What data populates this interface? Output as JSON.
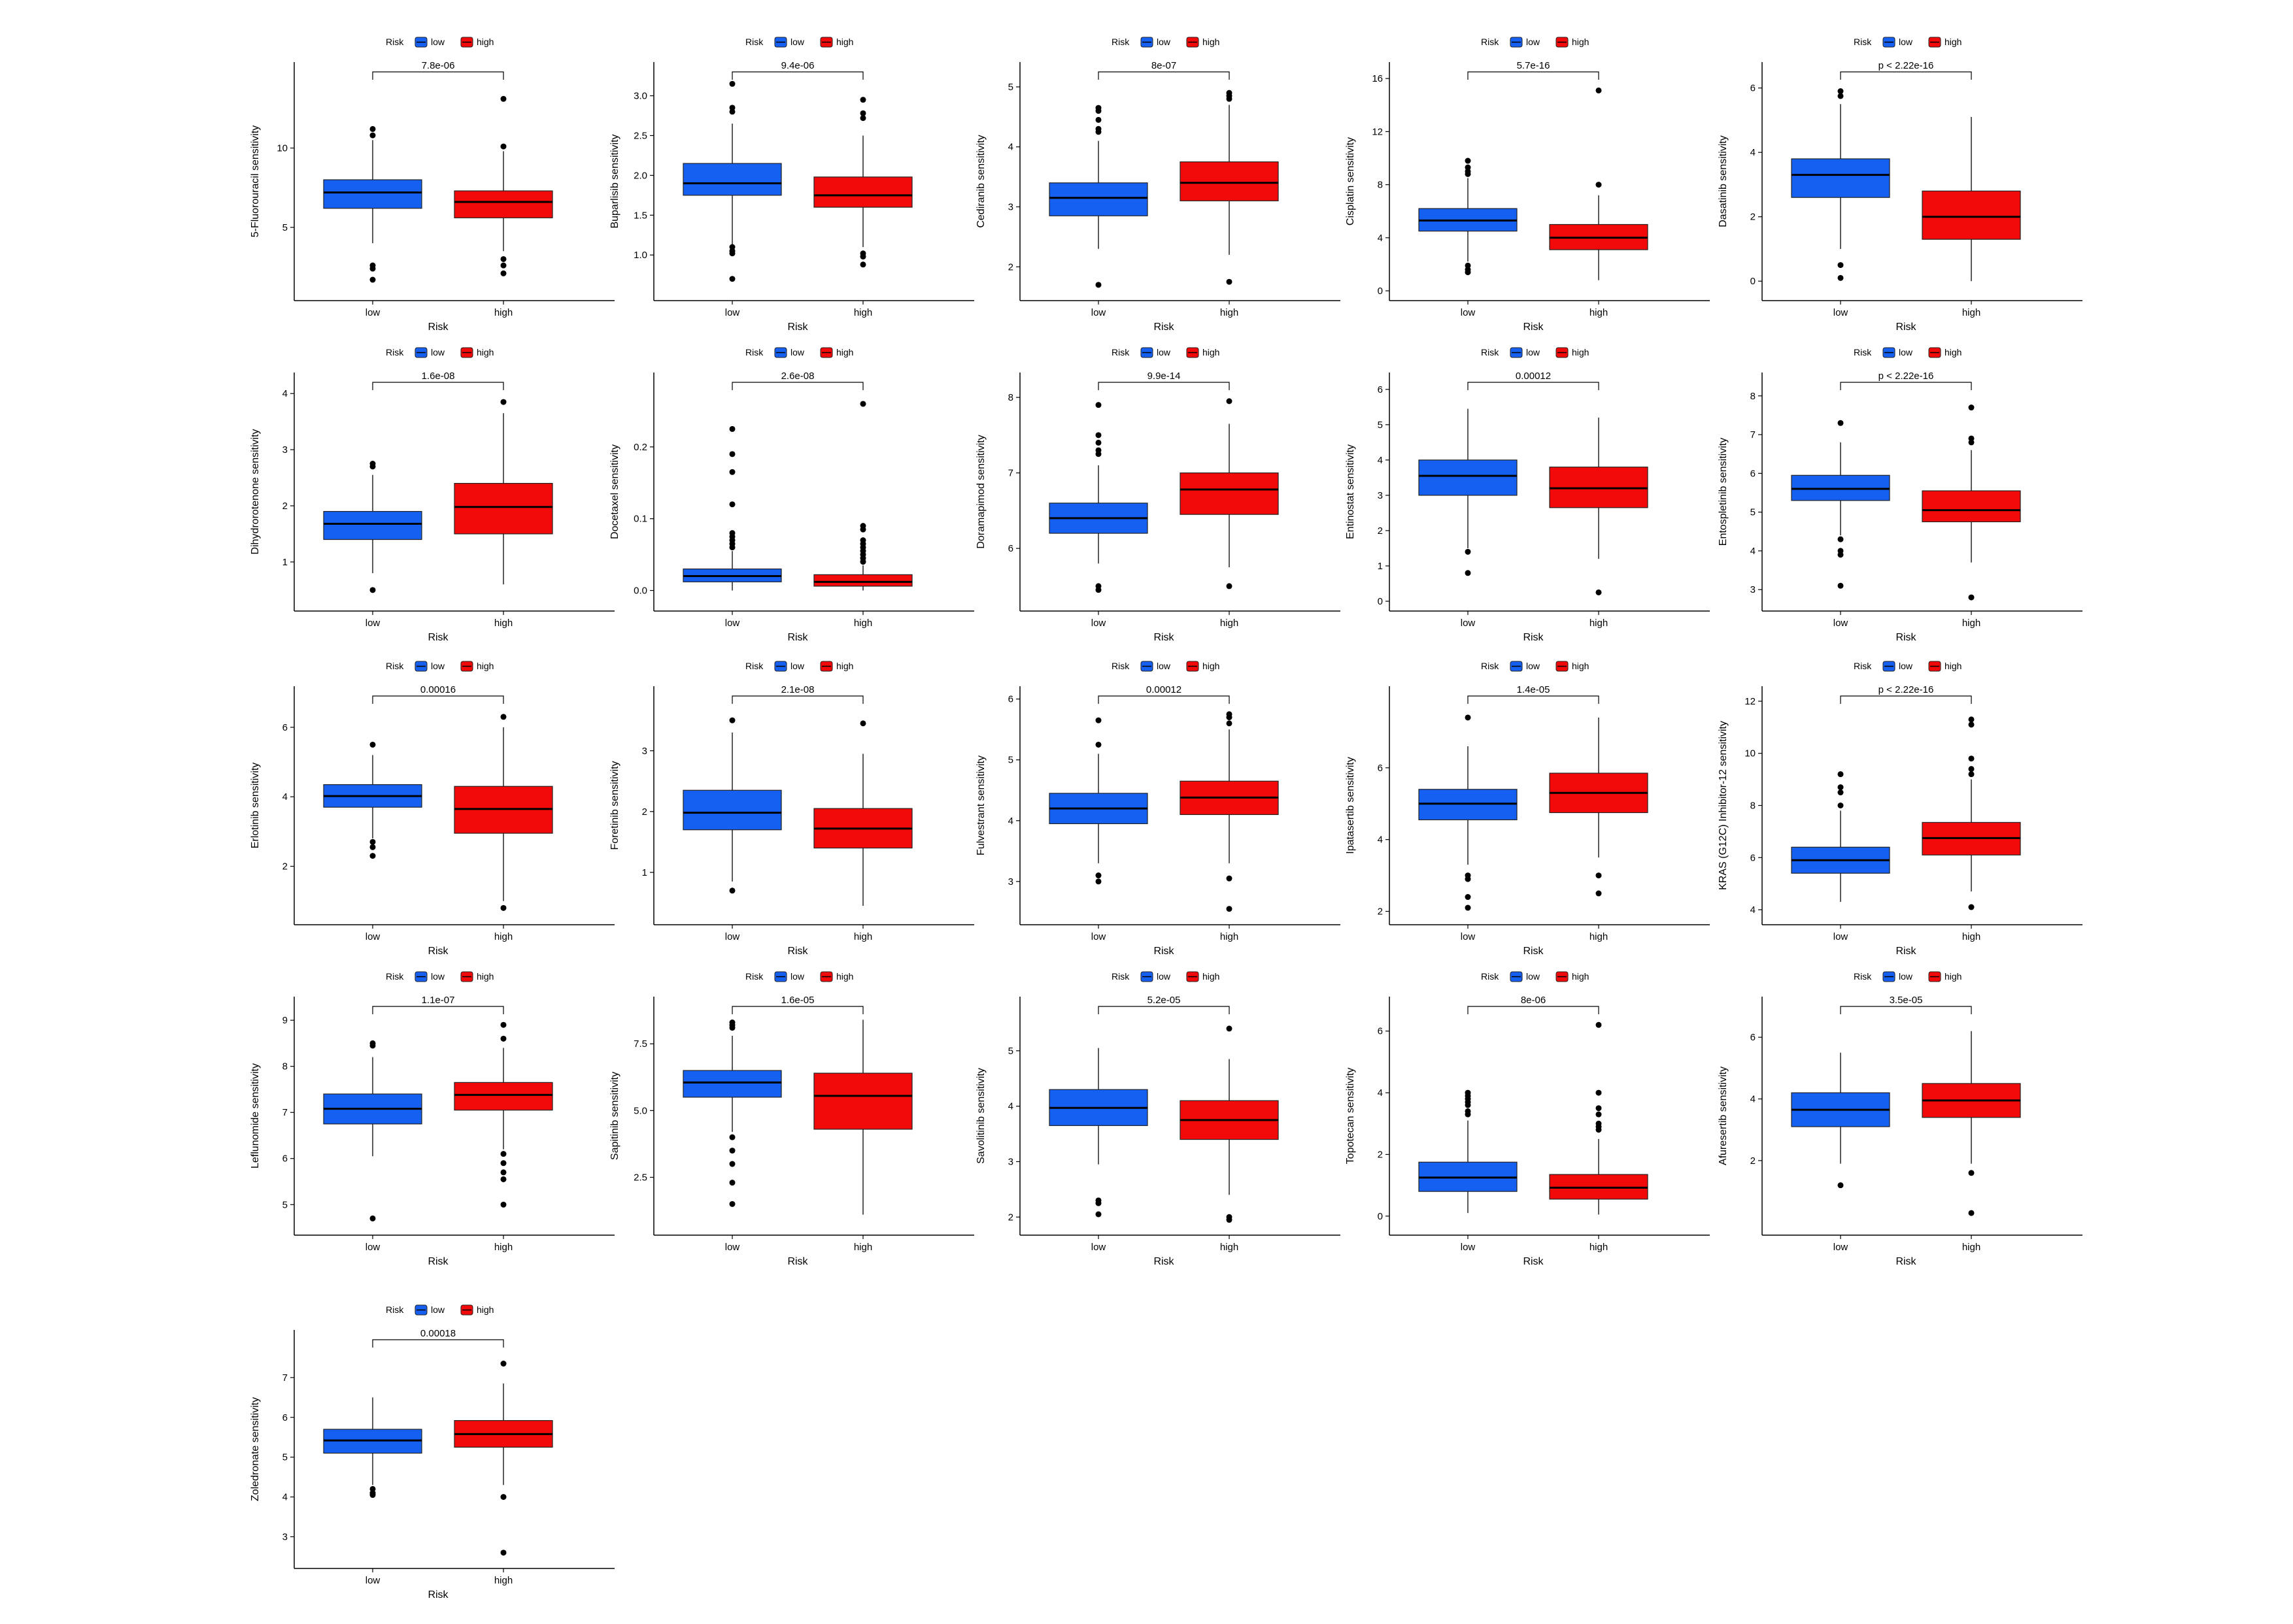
{
  "colors": {
    "low": "#1560f0",
    "high": "#f20a0a",
    "axis": "#000000",
    "points": "#000000"
  },
  "legend": {
    "title": "Risk",
    "items": [
      "low",
      "high"
    ]
  },
  "xlabel": "Risk",
  "categories": [
    "low",
    "high"
  ],
  "chart_data": [
    {
      "type": "box",
      "ylabel": "5-Fluorouracil sensitivity",
      "pvalue": "7.8e-06",
      "ylim": [
        1.0,
        14.8
      ],
      "yticks": [
        5,
        10
      ],
      "boxes": [
        {
          "group": "low",
          "q1": 6.2,
          "median": 7.2,
          "q3": 8.0,
          "whisker_low": 4.0,
          "whisker_high": 10.5,
          "outliers": [
            11.2,
            10.8,
            2.6,
            2.4,
            1.7
          ]
        },
        {
          "group": "high",
          "q1": 5.6,
          "median": 6.6,
          "q3": 7.3,
          "whisker_low": 3.5,
          "whisker_high": 9.8,
          "outliers": [
            13.1,
            10.1,
            3.0,
            2.6,
            2.1
          ]
        }
      ]
    },
    {
      "type": "box",
      "ylabel": "Buparlisib sensitivity",
      "pvalue": "9.4e-06",
      "ylim": [
        0.55,
        3.3
      ],
      "yticks": [
        1.0,
        1.5,
        2.0,
        2.5,
        3.0
      ],
      "boxes": [
        {
          "group": "low",
          "q1": 1.75,
          "median": 1.9,
          "q3": 2.15,
          "whisker_low": 1.12,
          "whisker_high": 2.65,
          "outliers": [
            3.15,
            2.85,
            2.8,
            1.1,
            1.05,
            1.02,
            0.7
          ]
        },
        {
          "group": "high",
          "q1": 1.6,
          "median": 1.75,
          "q3": 1.98,
          "whisker_low": 1.1,
          "whisker_high": 2.5,
          "outliers": [
            2.95,
            2.78,
            2.72,
            1.02,
            0.98,
            0.88
          ]
        }
      ]
    },
    {
      "type": "box",
      "ylabel": "Cediranib sensitivity",
      "pvalue": "8e-07",
      "ylim": [
        1.6,
        5.25
      ],
      "yticks": [
        2,
        3,
        4,
        5
      ],
      "boxes": [
        {
          "group": "low",
          "q1": 2.85,
          "median": 3.15,
          "q3": 3.4,
          "whisker_low": 2.3,
          "whisker_high": 4.1,
          "outliers": [
            4.65,
            4.6,
            4.45,
            4.3,
            4.25,
            1.7
          ]
        },
        {
          "group": "high",
          "q1": 3.1,
          "median": 3.4,
          "q3": 3.75,
          "whisker_low": 2.2,
          "whisker_high": 4.7,
          "outliers": [
            4.9,
            4.85,
            4.8,
            1.75
          ]
        }
      ]
    },
    {
      "type": "box",
      "ylabel": "Cisplatin sensitivity",
      "pvalue": "5.7e-16",
      "ylim": [
        0,
        16.5
      ],
      "yticks": [
        0,
        4,
        8,
        12,
        16
      ],
      "boxes": [
        {
          "group": "low",
          "q1": 4.5,
          "median": 5.3,
          "q3": 6.2,
          "whisker_low": 2.2,
          "whisker_high": 8.5,
          "outliers": [
            9.8,
            9.3,
            9.0,
            8.8,
            1.9,
            1.6,
            1.4
          ]
        },
        {
          "group": "high",
          "q1": 3.1,
          "median": 4.0,
          "q3": 5.0,
          "whisker_low": 0.8,
          "whisker_high": 7.2,
          "outliers": [
            15.1,
            8.0
          ]
        }
      ]
    },
    {
      "type": "box",
      "ylabel": "Dasatinib sensitivity",
      "pvalue": "p < 2.22e-16",
      "ylim": [
        -0.3,
        6.5
      ],
      "yticks": [
        0,
        2,
        4,
        6
      ],
      "boxes": [
        {
          "group": "low",
          "q1": 2.6,
          "median": 3.3,
          "q3": 3.8,
          "whisker_low": 1.0,
          "whisker_high": 5.5,
          "outliers": [
            5.9,
            5.75,
            0.5,
            0.1
          ]
        },
        {
          "group": "high",
          "q1": 1.3,
          "median": 2.0,
          "q3": 2.8,
          "whisker_low": 0.0,
          "whisker_high": 5.1,
          "outliers": []
        }
      ]
    },
    {
      "type": "box",
      "ylabel": "Dihydrorotenone sensitivity",
      "pvalue": "1.6e-08",
      "ylim": [
        0.3,
        4.2
      ],
      "yticks": [
        1,
        2,
        3,
        4
      ],
      "boxes": [
        {
          "group": "low",
          "q1": 1.4,
          "median": 1.68,
          "q3": 1.9,
          "whisker_low": 0.8,
          "whisker_high": 2.55,
          "outliers": [
            2.75,
            2.7,
            0.5
          ]
        },
        {
          "group": "high",
          "q1": 1.5,
          "median": 1.98,
          "q3": 2.4,
          "whisker_low": 0.6,
          "whisker_high": 3.65,
          "outliers": [
            3.85
          ]
        }
      ]
    },
    {
      "type": "box",
      "ylabel": "Docetaxel sensitivity",
      "pvalue": "2.6e-08",
      "ylim": [
        -0.015,
        0.29
      ],
      "yticks": [
        0.0,
        0.1,
        0.2
      ],
      "boxes": [
        {
          "group": "low",
          "q1": 0.012,
          "median": 0.02,
          "q3": 0.03,
          "whisker_low": 0.0,
          "whisker_high": 0.055,
          "outliers": [
            0.225,
            0.19,
            0.165,
            0.12,
            0.08,
            0.075,
            0.07,
            0.065,
            0.06
          ]
        },
        {
          "group": "high",
          "q1": 0.006,
          "median": 0.012,
          "q3": 0.022,
          "whisker_low": 0.0,
          "whisker_high": 0.035,
          "outliers": [
            0.26,
            0.09,
            0.085,
            0.07,
            0.065,
            0.06,
            0.055,
            0.05,
            0.045,
            0.04
          ]
        }
      ]
    },
    {
      "type": "box",
      "ylabel": "Doramapimod sensitivity",
      "pvalue": "9.9e-14",
      "ylim": [
        5.3,
        8.2
      ],
      "yticks": [
        6,
        7,
        8
      ],
      "boxes": [
        {
          "group": "low",
          "q1": 6.2,
          "median": 6.4,
          "q3": 6.6,
          "whisker_low": 5.8,
          "whisker_high": 7.1,
          "outliers": [
            7.9,
            7.5,
            7.4,
            7.3,
            7.25,
            5.5,
            5.45
          ]
        },
        {
          "group": "high",
          "q1": 6.45,
          "median": 6.78,
          "q3": 7.0,
          "whisker_low": 5.75,
          "whisker_high": 7.65,
          "outliers": [
            7.95,
            5.5
          ]
        }
      ]
    },
    {
      "type": "box",
      "ylabel": "Entinostat sensitivity",
      "pvalue": "0.00012",
      "ylim": [
        0,
        6.2
      ],
      "yticks": [
        0,
        1,
        2,
        3,
        4,
        5,
        6
      ],
      "boxes": [
        {
          "group": "low",
          "q1": 3.0,
          "median": 3.55,
          "q3": 4.0,
          "whisker_low": 1.5,
          "whisker_high": 5.45,
          "outliers": [
            1.4,
            0.8
          ]
        },
        {
          "group": "high",
          "q1": 2.65,
          "median": 3.2,
          "q3": 3.8,
          "whisker_low": 1.2,
          "whisker_high": 5.2,
          "outliers": [
            0.25
          ]
        }
      ]
    },
    {
      "type": "box",
      "ylabel": "Entospletinib sensitivity",
      "pvalue": "p < 2.22e-16",
      "ylim": [
        2.7,
        8.35
      ],
      "yticks": [
        3,
        4,
        5,
        6,
        7,
        8
      ],
      "boxes": [
        {
          "group": "low",
          "q1": 5.3,
          "median": 5.6,
          "q3": 5.95,
          "whisker_low": 4.4,
          "whisker_high": 6.8,
          "outliers": [
            7.3,
            4.3,
            4.0,
            3.9,
            3.1
          ]
        },
        {
          "group": "high",
          "q1": 4.75,
          "median": 5.05,
          "q3": 5.55,
          "whisker_low": 3.7,
          "whisker_high": 6.6,
          "outliers": [
            7.7,
            6.9,
            6.8,
            2.8
          ]
        }
      ]
    },
    {
      "type": "box",
      "ylabel": "Erlotinib sensitivity",
      "pvalue": "0.00016",
      "ylim": [
        0.6,
        6.9
      ],
      "yticks": [
        2,
        4,
        6
      ],
      "boxes": [
        {
          "group": "low",
          "q1": 3.7,
          "median": 4.02,
          "q3": 4.35,
          "whisker_low": 2.8,
          "whisker_high": 5.2,
          "outliers": [
            5.5,
            2.7,
            2.55,
            2.3
          ]
        },
        {
          "group": "high",
          "q1": 2.95,
          "median": 3.65,
          "q3": 4.3,
          "whisker_low": 1.0,
          "whisker_high": 6.0,
          "outliers": [
            6.3,
            0.8
          ]
        }
      ]
    },
    {
      "type": "box",
      "ylabel": "Foretinib sensitivity",
      "pvalue": "2.1e-08",
      "ylim": [
        0.3,
        3.9
      ],
      "yticks": [
        1,
        2,
        3
      ],
      "boxes": [
        {
          "group": "low",
          "q1": 1.7,
          "median": 1.98,
          "q3": 2.35,
          "whisker_low": 0.85,
          "whisker_high": 3.3,
          "outliers": [
            3.5,
            0.7
          ]
        },
        {
          "group": "high",
          "q1": 1.4,
          "median": 1.72,
          "q3": 2.05,
          "whisker_low": 0.45,
          "whisker_high": 2.95,
          "outliers": [
            3.45
          ]
        }
      ]
    },
    {
      "type": "box",
      "ylabel": "Fulvestrant sensitivity",
      "pvalue": "0.00012",
      "ylim": [
        2.45,
        6.05
      ],
      "yticks": [
        3,
        4,
        5,
        6
      ],
      "boxes": [
        {
          "group": "low",
          "q1": 3.95,
          "median": 4.2,
          "q3": 4.45,
          "whisker_low": 3.3,
          "whisker_high": 5.1,
          "outliers": [
            5.65,
            5.25,
            3.1,
            3.0
          ]
        },
        {
          "group": "high",
          "q1": 4.1,
          "median": 4.38,
          "q3": 4.65,
          "whisker_low": 3.3,
          "whisker_high": 5.5,
          "outliers": [
            5.75,
            5.7,
            5.6,
            3.05,
            2.55
          ]
        }
      ]
    },
    {
      "type": "box",
      "ylabel": "Ipatasertib sensitivity",
      "pvalue": "1.4e-05",
      "ylim": [
        1.9,
        8.0
      ],
      "yticks": [
        2,
        4,
        6
      ],
      "boxes": [
        {
          "group": "low",
          "q1": 4.55,
          "median": 5.0,
          "q3": 5.4,
          "whisker_low": 3.3,
          "whisker_high": 6.6,
          "outliers": [
            7.4,
            3.0,
            2.9,
            2.4,
            2.1
          ]
        },
        {
          "group": "high",
          "q1": 4.75,
          "median": 5.3,
          "q3": 5.85,
          "whisker_low": 3.5,
          "whisker_high": 7.4,
          "outliers": [
            3.0,
            2.5
          ]
        }
      ]
    },
    {
      "type": "box",
      "ylabel": "KRAS (G12C) Inhibitor-12 sensitivity",
      "pvalue": "p < 2.22e-16",
      "ylim": [
        3.8,
        12.2
      ],
      "yticks": [
        4,
        6,
        8,
        10,
        12
      ],
      "boxes": [
        {
          "group": "low",
          "q1": 5.4,
          "median": 5.9,
          "q3": 6.4,
          "whisker_low": 4.3,
          "whisker_high": 7.8,
          "outliers": [
            9.2,
            8.7,
            8.5,
            8.0
          ]
        },
        {
          "group": "high",
          "q1": 6.1,
          "median": 6.75,
          "q3": 7.35,
          "whisker_low": 4.7,
          "whisker_high": 9.0,
          "outliers": [
            11.3,
            11.1,
            9.8,
            9.4,
            9.2,
            4.1
          ]
        }
      ]
    },
    {
      "type": "box",
      "ylabel": "Leflunomide sensitivity",
      "pvalue": "1.1e-07",
      "ylim": [
        4.55,
        9.3
      ],
      "yticks": [
        5,
        6,
        7,
        8,
        9
      ],
      "boxes": [
        {
          "group": "low",
          "q1": 6.75,
          "median": 7.08,
          "q3": 7.4,
          "whisker_low": 6.05,
          "whisker_high": 8.2,
          "outliers": [
            8.5,
            8.45,
            4.7
          ]
        },
        {
          "group": "high",
          "q1": 7.05,
          "median": 7.38,
          "q3": 7.65,
          "whisker_low": 6.2,
          "whisker_high": 8.4,
          "outliers": [
            8.9,
            8.6,
            6.1,
            5.9,
            5.7,
            5.55,
            5.0
          ]
        }
      ]
    },
    {
      "type": "box",
      "ylabel": "Sapitinib sensitivity",
      "pvalue": "1.6e-05",
      "ylim": [
        0.7,
        8.9
      ],
      "yticks": [
        2.5,
        5.0,
        7.5
      ],
      "boxes": [
        {
          "group": "low",
          "q1": 5.5,
          "median": 6.05,
          "q3": 6.5,
          "whisker_low": 4.2,
          "whisker_high": 7.8,
          "outliers": [
            8.3,
            8.2,
            8.1,
            4.0,
            3.5,
            3.0,
            2.3,
            1.5
          ]
        },
        {
          "group": "high",
          "q1": 4.3,
          "median": 5.55,
          "q3": 6.4,
          "whisker_low": 1.1,
          "whisker_high": 8.4,
          "outliers": []
        }
      ]
    },
    {
      "type": "box",
      "ylabel": "Savolitinib sensitivity",
      "pvalue": "5.2e-05",
      "ylim": [
        1.85,
        5.8
      ],
      "yticks": [
        2,
        3,
        4,
        5
      ],
      "boxes": [
        {
          "group": "low",
          "q1": 3.65,
          "median": 3.97,
          "q3": 4.3,
          "whisker_low": 2.95,
          "whisker_high": 5.05,
          "outliers": [
            2.3,
            2.25,
            2.05
          ]
        },
        {
          "group": "high",
          "q1": 3.4,
          "median": 3.75,
          "q3": 4.1,
          "whisker_low": 2.4,
          "whisker_high": 4.85,
          "outliers": [
            5.4,
            2.0,
            1.95
          ]
        }
      ]
    },
    {
      "type": "box",
      "ylabel": "Topotecan sensitivity",
      "pvalue": "8e-06",
      "ylim": [
        -0.3,
        6.8
      ],
      "yticks": [
        0,
        2,
        4,
        6
      ],
      "boxes": [
        {
          "group": "low",
          "q1": 0.8,
          "median": 1.25,
          "q3": 1.75,
          "whisker_low": 0.1,
          "whisker_high": 3.1,
          "outliers": [
            4.0,
            3.9,
            3.8,
            3.7,
            3.6,
            3.4,
            3.3
          ]
        },
        {
          "group": "high",
          "q1": 0.55,
          "median": 0.92,
          "q3": 1.35,
          "whisker_low": 0.05,
          "whisker_high": 2.5,
          "outliers": [
            6.2,
            4.0,
            3.5,
            3.3,
            3.0,
            2.9,
            2.8
          ]
        }
      ]
    },
    {
      "type": "box",
      "ylabel": "Afuresertib sensitivity",
      "pvalue": "3.5e-05",
      "ylim": [
        -0.1,
        7.0
      ],
      "yticks": [
        2,
        4,
        6
      ],
      "boxes": [
        {
          "group": "low",
          "q1": 3.1,
          "median": 3.65,
          "q3": 4.2,
          "whisker_low": 1.9,
          "whisker_high": 5.5,
          "outliers": [
            1.2
          ]
        },
        {
          "group": "high",
          "q1": 3.4,
          "median": 3.95,
          "q3": 4.5,
          "whisker_low": 1.9,
          "whisker_high": 6.2,
          "outliers": [
            1.6,
            0.3
          ]
        }
      ]
    },
    {
      "type": "box",
      "ylabel": "Zoledronate sensitivity",
      "pvalue": "0.00018",
      "ylim": [
        2.45,
        7.95
      ],
      "yticks": [
        3,
        4,
        5,
        6,
        7
      ],
      "boxes": [
        {
          "group": "low",
          "q1": 5.1,
          "median": 5.42,
          "q3": 5.7,
          "whisker_low": 4.3,
          "whisker_high": 6.5,
          "outliers": [
            4.2,
            4.1,
            4.05
          ]
        },
        {
          "group": "high",
          "q1": 5.25,
          "median": 5.58,
          "q3": 5.92,
          "whisker_low": 4.3,
          "whisker_high": 6.85,
          "outliers": [
            7.35,
            4.0,
            2.6
          ]
        }
      ]
    }
  ]
}
